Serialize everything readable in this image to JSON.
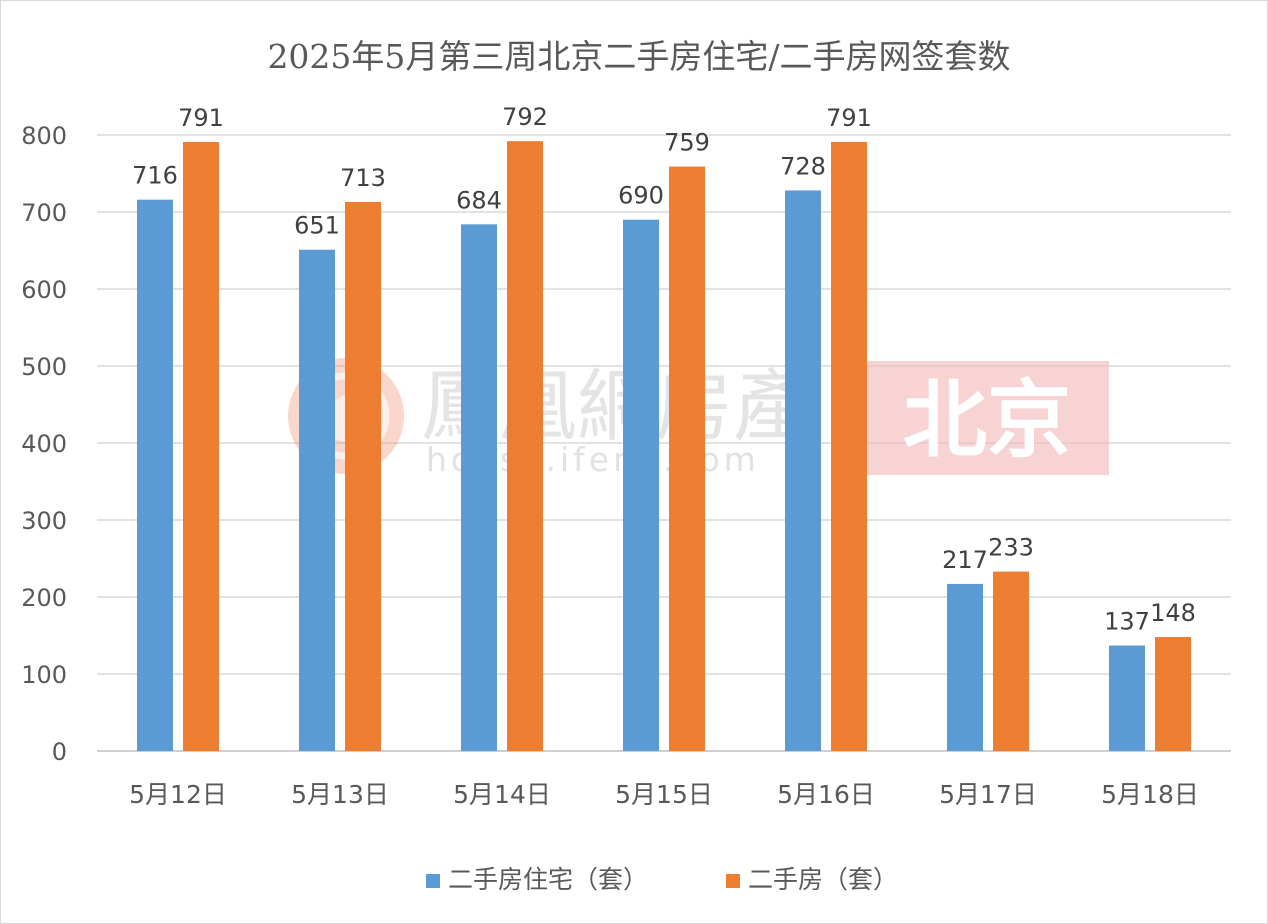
{
  "chart_data": {
    "type": "bar",
    "title": "2025年5月第三周北京二手房住宅/二手房网签套数",
    "xlabel": "",
    "ylabel": "",
    "categories": [
      "5月12日",
      "5月13日",
      "5月14日",
      "5月15日",
      "5月16日",
      "5月17日",
      "5月18日"
    ],
    "series": [
      {
        "name": "二手房住宅（套）",
        "color": "#5b9bd5",
        "values": [
          716,
          651,
          684,
          690,
          728,
          217,
          137
        ]
      },
      {
        "name": "二手房（套）",
        "color": "#ed7d31",
        "values": [
          791,
          713,
          792,
          759,
          791,
          233,
          148
        ]
      }
    ],
    "ylim": [
      0,
      800
    ],
    "yticks": [
      0,
      100,
      200,
      300,
      400,
      500,
      600,
      700,
      800
    ],
    "grid": true,
    "data_labels": true,
    "legend_position": "bottom"
  },
  "watermark": {
    "brand": "鳳凰網房產",
    "url": "house.ifeng.com",
    "city": "北京",
    "logo_icon": "phoenix-logo-icon",
    "city_badge_color": "#f4b6b6"
  }
}
